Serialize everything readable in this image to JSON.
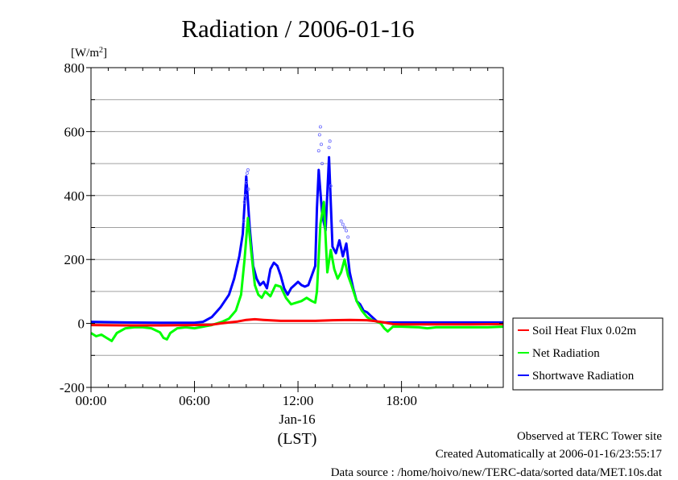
{
  "chart_data": {
    "type": "line",
    "title": "Radiation / 2006-01-16",
    "ylabel_unit": "[W/m",
    "ylabel_unit_sup": "2",
    "ylabel_unit_close": "]",
    "xlabel": "(LST)",
    "date_label": "Jan-16",
    "ylim": [
      -200,
      800
    ],
    "xlim": [
      0,
      23.9
    ],
    "y_ticks": [
      -200,
      0,
      200,
      400,
      600,
      800
    ],
    "y_tick_labels": [
      "-200",
      "0",
      "200",
      "400",
      "600",
      "800"
    ],
    "x_ticks": [
      0,
      6,
      12,
      18
    ],
    "x_tick_labels": [
      "00:00",
      "06:00",
      "12:00",
      "18:00"
    ],
    "grid": true,
    "legend_position": "right-middle",
    "series": [
      {
        "name": "Soil Heat Flux 0.02m",
        "color": "#ff0000",
        "x": [
          0,
          2,
          4,
          6,
          7,
          7.5,
          8,
          8.5,
          9,
          9.5,
          10,
          11,
          12,
          13,
          14,
          15,
          16,
          16.5,
          17,
          17.5,
          18,
          20,
          22,
          23.9
        ],
        "y": [
          -5,
          -6,
          -6,
          -5,
          -4,
          0,
          3,
          6,
          11,
          13,
          11,
          8,
          8,
          8,
          10,
          11,
          10,
          7,
          3,
          -2,
          -3,
          -3,
          -3,
          -2
        ]
      },
      {
        "name": "Net Radiation",
        "color": "#00ff00",
        "x": [
          0,
          0.3,
          0.6,
          0.9,
          1.2,
          1.5,
          2,
          2.5,
          3,
          3.5,
          4,
          4.2,
          4.4,
          4.6,
          5,
          5.5,
          6,
          6.5,
          7,
          7.3,
          7.6,
          8,
          8.4,
          8.7,
          8.9,
          9.1,
          9.3,
          9.5,
          9.7,
          9.9,
          10.1,
          10.4,
          10.7,
          11,
          11.3,
          11.6,
          11.9,
          12.2,
          12.5,
          12.8,
          13,
          13.1,
          13.3,
          13.5,
          13.7,
          13.9,
          14.1,
          14.3,
          14.5,
          14.7,
          14.9,
          15.1,
          15.4,
          15.7,
          16,
          16.3,
          16.6,
          16.8,
          17,
          17.2,
          17.5,
          18,
          19,
          19.5,
          20,
          21,
          22,
          23,
          23.9
        ],
        "y": [
          -30,
          -40,
          -35,
          -45,
          -55,
          -30,
          -15,
          -12,
          -12,
          -15,
          -28,
          -45,
          -50,
          -30,
          -15,
          -12,
          -15,
          -10,
          -5,
          0,
          5,
          15,
          40,
          90,
          200,
          330,
          220,
          120,
          90,
          80,
          100,
          85,
          120,
          115,
          80,
          60,
          65,
          70,
          80,
          70,
          65,
          100,
          310,
          380,
          160,
          230,
          170,
          140,
          160,
          200,
          150,
          120,
          70,
          40,
          20,
          10,
          5,
          0,
          -15,
          -25,
          -10,
          -10,
          -12,
          -15,
          -12,
          -12,
          -12,
          -12,
          -10
        ]
      },
      {
        "name": "Shortwave Radiation",
        "color": "#0000ff",
        "x": [
          0,
          2,
          4,
          6,
          6.5,
          7,
          7.5,
          8,
          8.3,
          8.6,
          8.8,
          9,
          9.2,
          9.4,
          9.6,
          9.8,
          10,
          10.2,
          10.4,
          10.6,
          10.8,
          11,
          11.2,
          11.4,
          11.6,
          11.8,
          12,
          12.2,
          12.4,
          12.6,
          12.8,
          13,
          13.1,
          13.2,
          13.4,
          13.6,
          13.8,
          14,
          14.2,
          14.4,
          14.6,
          14.8,
          15,
          15.2,
          15.4,
          15.6,
          15.8,
          16,
          16.2,
          16.4,
          16.6,
          17,
          18,
          20,
          22,
          23.9
        ],
        "y": [
          5,
          3,
          2,
          2,
          5,
          20,
          50,
          90,
          140,
          210,
          280,
          460,
          300,
          180,
          140,
          120,
          130,
          110,
          170,
          190,
          180,
          150,
          110,
          90,
          110,
          120,
          130,
          120,
          115,
          120,
          150,
          180,
          360,
          480,
          340,
          290,
          520,
          240,
          220,
          260,
          210,
          250,
          160,
          110,
          70,
          60,
          40,
          35,
          25,
          15,
          5,
          3,
          3,
          3,
          3,
          3
        ]
      }
    ],
    "scatter_overlay": {
      "series": "Shortwave Radiation",
      "x": [
        8.85,
        8.9,
        8.95,
        9.0,
        9.05,
        9.1,
        9.12,
        13.2,
        13.25,
        13.3,
        13.35,
        13.4,
        13.8,
        13.85,
        13.9,
        14.5,
        14.6,
        14.7,
        14.8,
        14.9
      ],
      "y": [
        320,
        380,
        400,
        440,
        470,
        480,
        420,
        540,
        590,
        615,
        560,
        500,
        550,
        570,
        430,
        320,
        310,
        300,
        290,
        270
      ]
    }
  },
  "footer": {
    "line1": "Observed at TERC Tower site",
    "line2": "Created Automatically at 2006-01-16/23:55:17",
    "line3": "Data source : /home/hoivo/new/TERC-data/sorted  data/MET.10s.dat"
  }
}
